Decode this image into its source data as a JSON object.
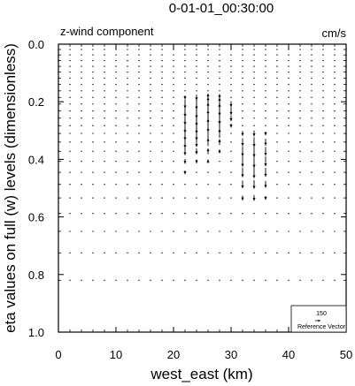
{
  "chart_data": {
    "type": "vector-field",
    "title": "0-01-01_00:30:00",
    "left_subtitle": "z-wind component",
    "right_subtitle": "cm/s",
    "xlabel": "west_east (km)",
    "ylabel": "eta values on full (w) levels (dimensionless)",
    "xlim": [
      0,
      50
    ],
    "ylim": [
      1.0,
      0.0
    ],
    "x_ticks": [
      0,
      10,
      20,
      30,
      40,
      50
    ],
    "y_ticks": [
      0.0,
      0.2,
      0.4,
      0.6,
      0.8,
      1.0
    ],
    "y_tick_labels": [
      "0.0",
      "0.2",
      "0.4",
      "0.6",
      "0.8",
      "1.0"
    ],
    "grid": false,
    "reference_vector": {
      "magnitude": "150",
      "label": "Reference Vector",
      "position": "bottom-right"
    },
    "eta_levels": [
      0.0,
      0.0185,
      0.0375,
      0.057,
      0.077,
      0.097,
      0.118,
      0.14,
      0.162,
      0.185,
      0.208,
      0.232,
      0.257,
      0.283,
      0.31,
      0.34,
      0.372,
      0.407,
      0.445,
      0.487,
      0.534,
      0.588,
      0.65,
      0.725,
      0.82,
      1.0
    ],
    "x_positions_km": [
      0,
      2,
      4,
      6,
      8,
      10,
      12,
      14,
      16,
      18,
      20,
      22,
      24,
      26,
      28,
      30,
      32,
      34,
      36,
      38,
      40,
      42,
      44,
      46,
      48,
      50
    ],
    "w_columns": [
      {
        "x": 22,
        "w": [
          0,
          0,
          0,
          0,
          0,
          0,
          0,
          0,
          0,
          -20,
          -45,
          -60,
          -70,
          -75,
          -70,
          -60,
          -40,
          -25,
          -20,
          0,
          0,
          0,
          0,
          0,
          0,
          0
        ]
      },
      {
        "x": 24,
        "w": [
          0,
          0,
          0,
          0,
          0,
          0,
          0,
          0,
          0,
          -30,
          -55,
          -75,
          -80,
          -80,
          -70,
          -50,
          -30,
          -20,
          0,
          0,
          0,
          0,
          0,
          0,
          0,
          0
        ]
      },
      {
        "x": 26,
        "w": [
          0,
          0,
          0,
          0,
          0,
          0,
          0,
          0,
          0,
          40,
          70,
          85,
          80,
          70,
          60,
          40,
          30,
          20,
          0,
          0,
          0,
          0,
          0,
          0,
          0,
          0
        ]
      },
      {
        "x": 28,
        "w": [
          0,
          0,
          0,
          0,
          0,
          0,
          0,
          0,
          0,
          35,
          65,
          75,
          70,
          60,
          45,
          30,
          20,
          0,
          0,
          0,
          0,
          0,
          0,
          0,
          0,
          0
        ]
      },
      {
        "x": 30,
        "w": [
          0,
          0,
          0,
          0,
          0,
          0,
          0,
          0,
          0,
          0,
          -30,
          -40,
          -30,
          -20,
          0,
          0,
          0,
          0,
          0,
          0,
          0,
          0,
          0,
          0,
          0,
          0
        ]
      },
      {
        "x": 32,
        "w": [
          0,
          0,
          0,
          0,
          0,
          0,
          0,
          0,
          0,
          0,
          0,
          0,
          0,
          0,
          -25,
          -40,
          -50,
          -55,
          -50,
          -40,
          -25,
          0,
          0,
          0,
          0,
          0
        ]
      },
      {
        "x": 34,
        "w": [
          0,
          0,
          0,
          0,
          0,
          0,
          0,
          0,
          0,
          0,
          0,
          0,
          0,
          0,
          -30,
          -50,
          -60,
          -65,
          -60,
          -45,
          -30,
          0,
          0,
          0,
          0,
          0
        ]
      },
      {
        "x": 36,
        "w": [
          0,
          0,
          0,
          0,
          0,
          0,
          0,
          0,
          0,
          0,
          0,
          0,
          0,
          0,
          -20,
          -35,
          -45,
          -50,
          -45,
          -35,
          -20,
          0,
          0,
          0,
          0,
          0
        ]
      }
    ]
  }
}
